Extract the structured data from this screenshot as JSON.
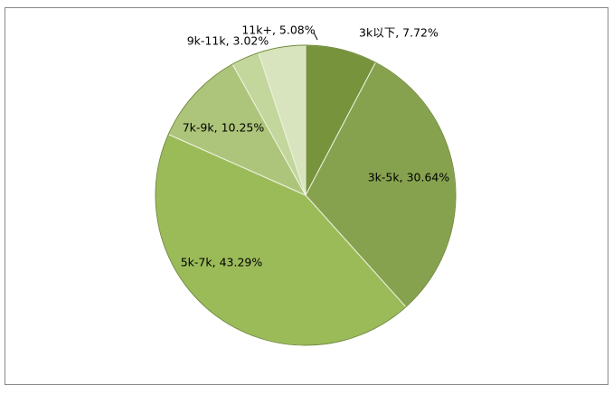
{
  "chart_data": {
    "type": "pie",
    "values": [
      7.72,
      30.64,
      43.29,
      10.25,
      3.02,
      5.08
    ],
    "value_labels": [
      "3k以下, 7.72%",
      "3k-5k, 30.64%",
      "5k-7k, 43.29%",
      "7k-9k, 10.25%",
      "9k-11k, 3.02%",
      "11k+, 5.08%"
    ],
    "colors": [
      "#77933c",
      "#86a24e",
      "#9bbb59",
      "#adc57a",
      "#c3d69b",
      "#d7e4bd"
    ]
  }
}
